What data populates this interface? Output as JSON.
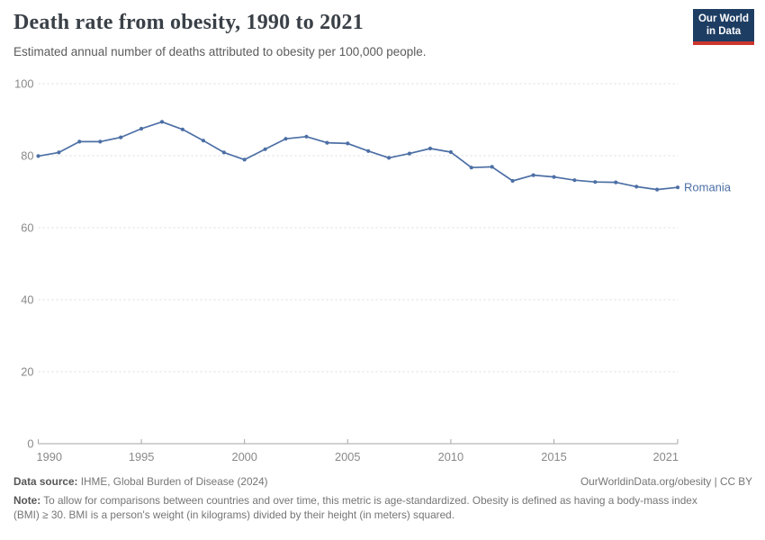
{
  "header": {
    "title": "Death rate from obesity, 1990 to 2021",
    "subtitle": "Estimated annual number of deaths attributed to obesity per 100,000 people.",
    "logo": {
      "line1": "Our World",
      "line2": "in Data",
      "bg_color": "#1d3d63",
      "accent_color": "#cc342e"
    }
  },
  "chart_data": {
    "type": "line",
    "title": "Death rate from obesity, 1990 to 2021",
    "xlabel": "",
    "ylabel": "",
    "ylim": [
      0,
      100
    ],
    "yticks": [
      0,
      20,
      40,
      60,
      80,
      100
    ],
    "xticks": [
      1990,
      1995,
      2000,
      2005,
      2010,
      2015,
      2021
    ],
    "grid": "horizontal-dashed",
    "legend_position": "end-of-line-label",
    "axis_color": "#a5a5a5",
    "gridline_color": "#dcdcdc",
    "x": [
      1990,
      1991,
      1992,
      1993,
      1994,
      1995,
      1996,
      1997,
      1998,
      1999,
      2000,
      2001,
      2002,
      2003,
      2004,
      2005,
      2006,
      2007,
      2008,
      2009,
      2010,
      2011,
      2012,
      2013,
      2014,
      2015,
      2016,
      2017,
      2018,
      2019,
      2020,
      2021
    ],
    "series": [
      {
        "name": "Romania",
        "color": "#4c6fa5",
        "values": [
          79.9,
          80.9,
          83.9,
          83.9,
          85.1,
          87.5,
          89.4,
          87.3,
          84.2,
          80.9,
          78.9,
          81.8,
          84.7,
          85.3,
          83.6,
          83.4,
          81.3,
          79.4,
          80.6,
          82.0,
          81.0,
          76.7,
          76.9,
          73.0,
          74.6,
          74.1,
          73.2,
          72.7,
          72.6,
          71.4,
          70.6,
          71.2
        ]
      }
    ]
  },
  "footer": {
    "data_source_label": "Data source:",
    "data_source_value": "IHME, Global Burden of Disease (2024)",
    "link": "OurWorldinData.org/obesity | CC BY",
    "note_label": "Note:",
    "note_text": "To allow for comparisons between countries and over time, this metric is age-standardized. Obesity is defined as having a body-mass index (BMI) ≥ 30. BMI is a person's weight (in kilograms) divided by their height (in meters) squared."
  }
}
